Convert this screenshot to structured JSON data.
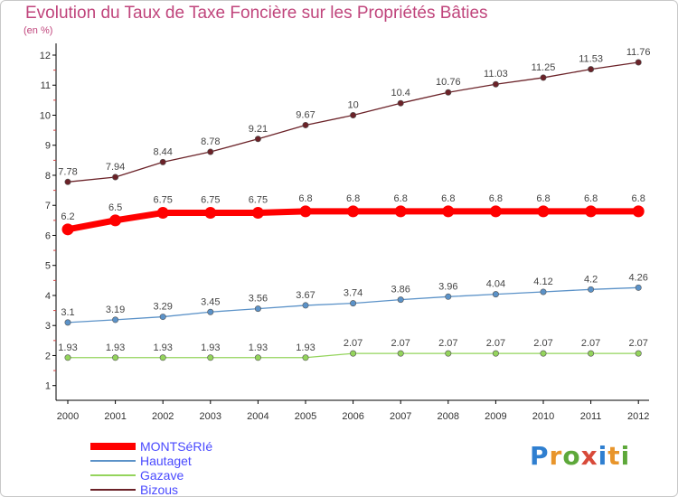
{
  "chart_data": {
    "type": "line",
    "title": "Evolution du Taux de Taxe Foncière sur les Propriétés Bâties",
    "subtitle": "(en %)",
    "categories": [
      "2000",
      "2001",
      "2002",
      "2003",
      "2004",
      "2005",
      "2006",
      "2007",
      "2008",
      "2009",
      "2010",
      "2011",
      "2012"
    ],
    "ylim": [
      0.6,
      12
    ],
    "yticks": [
      1,
      2,
      3,
      4,
      5,
      6,
      7,
      8,
      9,
      10,
      11,
      12
    ],
    "series": [
      {
        "name": "MONTSéRIé",
        "color": "#ff0000",
        "values": [
          6.2,
          6.5,
          6.75,
          6.75,
          6.75,
          6.8,
          6.8,
          6.8,
          6.8,
          6.8,
          6.8,
          6.8,
          6.8
        ],
        "labels": [
          "6.2",
          "6.5",
          "6.75",
          "6.75",
          "6.75",
          "6.8",
          "6.8",
          "6.8",
          "6.8",
          "6.8",
          "6.8",
          "6.8",
          "6.8"
        ]
      },
      {
        "name": "Hautaget",
        "color": "#5b92c8",
        "values": [
          3.1,
          3.19,
          3.29,
          3.45,
          3.56,
          3.67,
          3.74,
          3.86,
          3.96,
          4.04,
          4.12,
          4.2,
          4.26
        ],
        "labels": [
          "3.1",
          "3.19",
          "3.29",
          "3.45",
          "3.56",
          "3.67",
          "3.74",
          "3.86",
          "3.96",
          "4.04",
          "4.12",
          "4.2",
          "4.26"
        ]
      },
      {
        "name": "Gazave",
        "color": "#94d45c",
        "values": [
          1.93,
          1.93,
          1.93,
          1.93,
          1.93,
          1.93,
          2.07,
          2.07,
          2.07,
          2.07,
          2.07,
          2.07,
          2.07
        ],
        "labels": [
          "1.93",
          "1.93",
          "1.93",
          "1.93",
          "1.93",
          "1.93",
          "2.07",
          "2.07",
          "2.07",
          "2.07",
          "2.07",
          "2.07",
          "2.07"
        ]
      },
      {
        "name": "Bizous",
        "color": "#6b2228",
        "values": [
          7.78,
          7.94,
          8.44,
          8.78,
          9.21,
          9.67,
          10,
          10.4,
          10.76,
          11.03,
          11.25,
          11.53,
          11.76
        ],
        "labels": [
          "7.78",
          "7.94",
          "8.44",
          "8.78",
          "9.21",
          "9.67",
          "10",
          "10.4",
          "10.76",
          "11.03",
          "11.25",
          "11.53",
          "11.76"
        ]
      }
    ]
  },
  "legend": {
    "items": [
      {
        "label": "MONTSéRIé",
        "color": "#ff0000"
      },
      {
        "label": "Hautaget",
        "color": "#5b92c8"
      },
      {
        "label": "Gazave",
        "color": "#94d45c"
      },
      {
        "label": "Bizous",
        "color": "#6b2228"
      }
    ]
  },
  "logo": {
    "letters": [
      "P",
      "r",
      "o",
      "x",
      "i",
      "t",
      "i"
    ],
    "colors": [
      "#2f7fd0",
      "#e8952b",
      "#5da83a",
      "#d84a3a",
      "#2f7fd0",
      "#e8952b",
      "#5da83a"
    ]
  }
}
